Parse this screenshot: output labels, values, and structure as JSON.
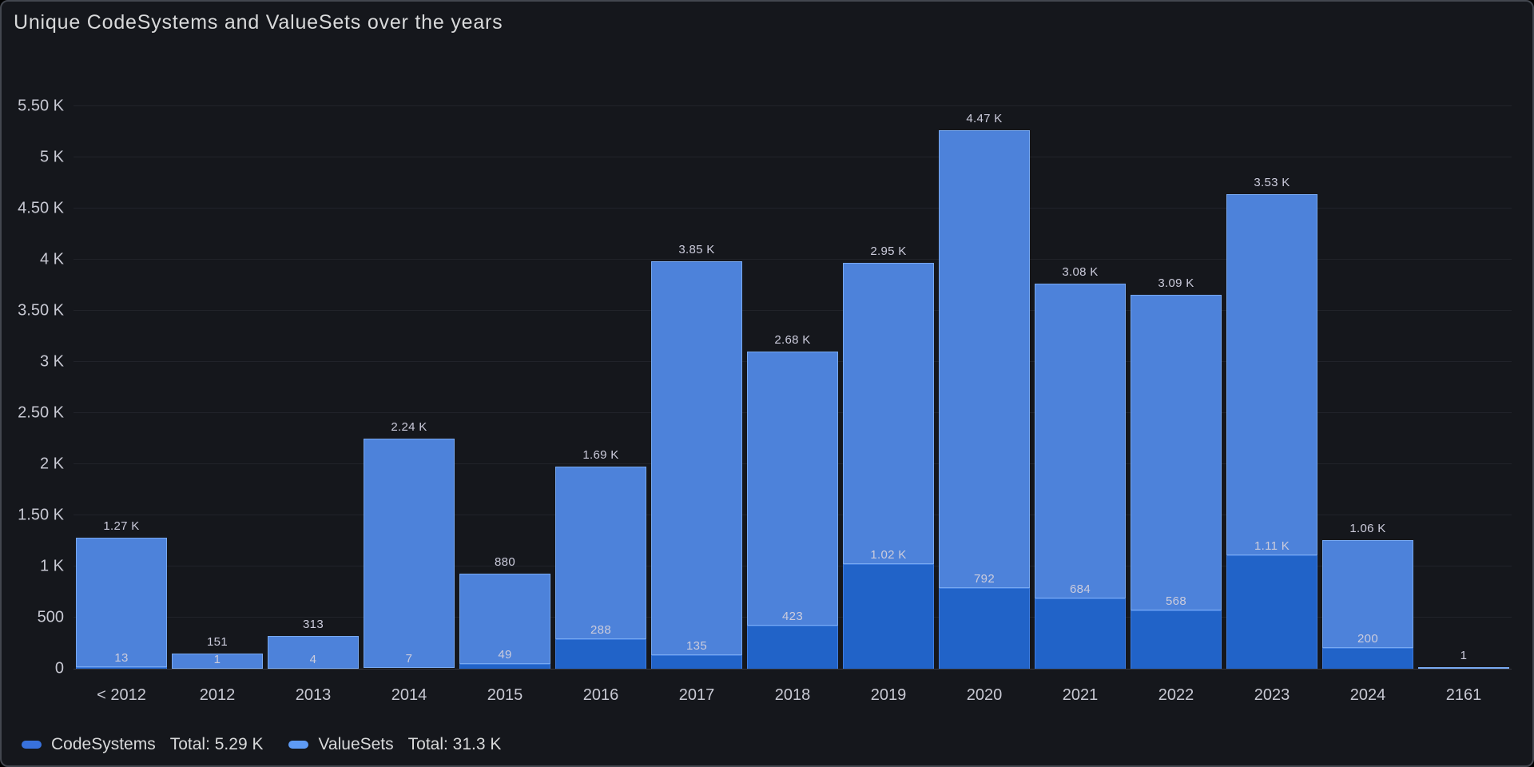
{
  "title": "Unique CodeSystems and ValueSets over the years",
  "colors": {
    "background": "#15171c",
    "codesystems_fill": "#2163c8",
    "codesystems_border": "#3f7de0",
    "codesystems_legend": "#3871dc",
    "valuesets_fill": "#4d82da",
    "valuesets_border": "#78a9f1",
    "valuesets_legend": "#5e9bf5",
    "axis_text": "#c8c9d3",
    "bar_label_text": "#ccccdc",
    "title_text": "#d8d9da"
  },
  "chart_data": {
    "type": "bar",
    "stacked": true,
    "title": "Unique CodeSystems and ValueSets over the years",
    "categories": [
      "< 2012",
      "2012",
      "2013",
      "2014",
      "2015",
      "2016",
      "2017",
      "2018",
      "2019",
      "2020",
      "2021",
      "2022",
      "2023",
      "2024",
      "2161"
    ],
    "series": [
      {
        "name": "CodeSystems",
        "total_label": "Total: 5.29 K",
        "values": [
          13,
          1,
          4,
          7,
          49,
          288,
          135,
          423,
          1020,
          792,
          684,
          568,
          1110,
          200,
          0
        ],
        "labels": [
          "13",
          "1",
          "4",
          "7",
          "49",
          "288",
          "135",
          "423",
          "1.02 K",
          "792",
          "684",
          "568",
          "1.11 K",
          "200",
          ""
        ]
      },
      {
        "name": "ValueSets",
        "total_label": "Total: 31.3 K",
        "values": [
          1270,
          151,
          313,
          2240,
          880,
          1690,
          3850,
          2680,
          2950,
          4470,
          3080,
          3090,
          3530,
          1060,
          1
        ],
        "labels": [
          "1.27 K",
          "151",
          "313",
          "2.24 K",
          "880",
          "1.69 K",
          "3.85 K",
          "2.68 K",
          "2.95 K",
          "4.47 K",
          "3.08 K",
          "3.09 K",
          "3.53 K",
          "1.06 K",
          "1"
        ]
      }
    ],
    "ylim": [
      0,
      5500
    ],
    "ylabel": "",
    "xlabel": "",
    "y_ticks": [
      {
        "value": 5500,
        "label": "5.50 K"
      },
      {
        "value": 5000,
        "label": "5 K"
      },
      {
        "value": 4500,
        "label": "4.50 K"
      },
      {
        "value": 4000,
        "label": "4 K"
      },
      {
        "value": 3500,
        "label": "3.50 K"
      },
      {
        "value": 3000,
        "label": "3 K"
      },
      {
        "value": 2500,
        "label": "2.50 K"
      },
      {
        "value": 2000,
        "label": "2 K"
      },
      {
        "value": 1500,
        "label": "1.50 K"
      },
      {
        "value": 1000,
        "label": "1 K"
      },
      {
        "value": 500,
        "label": "500"
      },
      {
        "value": 0,
        "label": "0"
      }
    ],
    "grid": "horizontal",
    "legend_position": "bottom"
  }
}
